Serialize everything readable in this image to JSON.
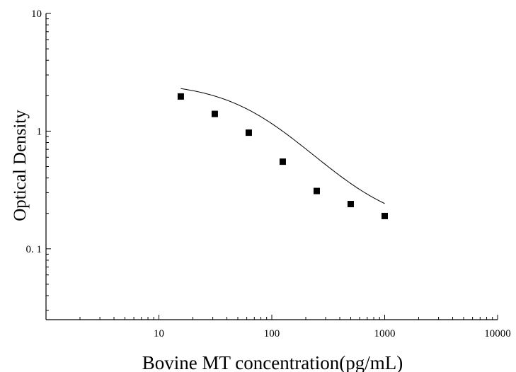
{
  "chart_data": {
    "type": "scatter",
    "title": "",
    "xlabel": "Bovine MT concentration(pg/mL)",
    "ylabel": "Optical Density",
    "x_scale": "log",
    "y_scale": "log",
    "xlim": [
      1,
      10000
    ],
    "ylim": [
      0.025,
      10
    ],
    "x_ticks": [
      {
        "value": 10,
        "label": "10"
      },
      {
        "value": 100,
        "label": "100"
      },
      {
        "value": 1000,
        "label": "1000"
      },
      {
        "value": 10000,
        "label": "10000"
      }
    ],
    "y_ticks": [
      {
        "value": 0.1,
        "label": "0. 1"
      },
      {
        "value": 1,
        "label": "1"
      },
      {
        "value": 10,
        "label": "10"
      }
    ],
    "grid": false,
    "legend": "none",
    "marker": "square",
    "colors": {
      "points": "#000000",
      "curve": "#000000",
      "axes": "#000000"
    },
    "series": [
      {
        "x": [
          15.625,
          31.25,
          62.5,
          125,
          250,
          500,
          1000
        ],
        "y": [
          1.97,
          1.4,
          0.97,
          0.55,
          0.31,
          0.24,
          0.19
        ]
      }
    ],
    "fit_curve": {
      "model": "4PL",
      "A": 2.6,
      "D": 0.15,
      "C": 75,
      "B": 1.25,
      "x_range": [
        15.625,
        1000
      ]
    }
  }
}
